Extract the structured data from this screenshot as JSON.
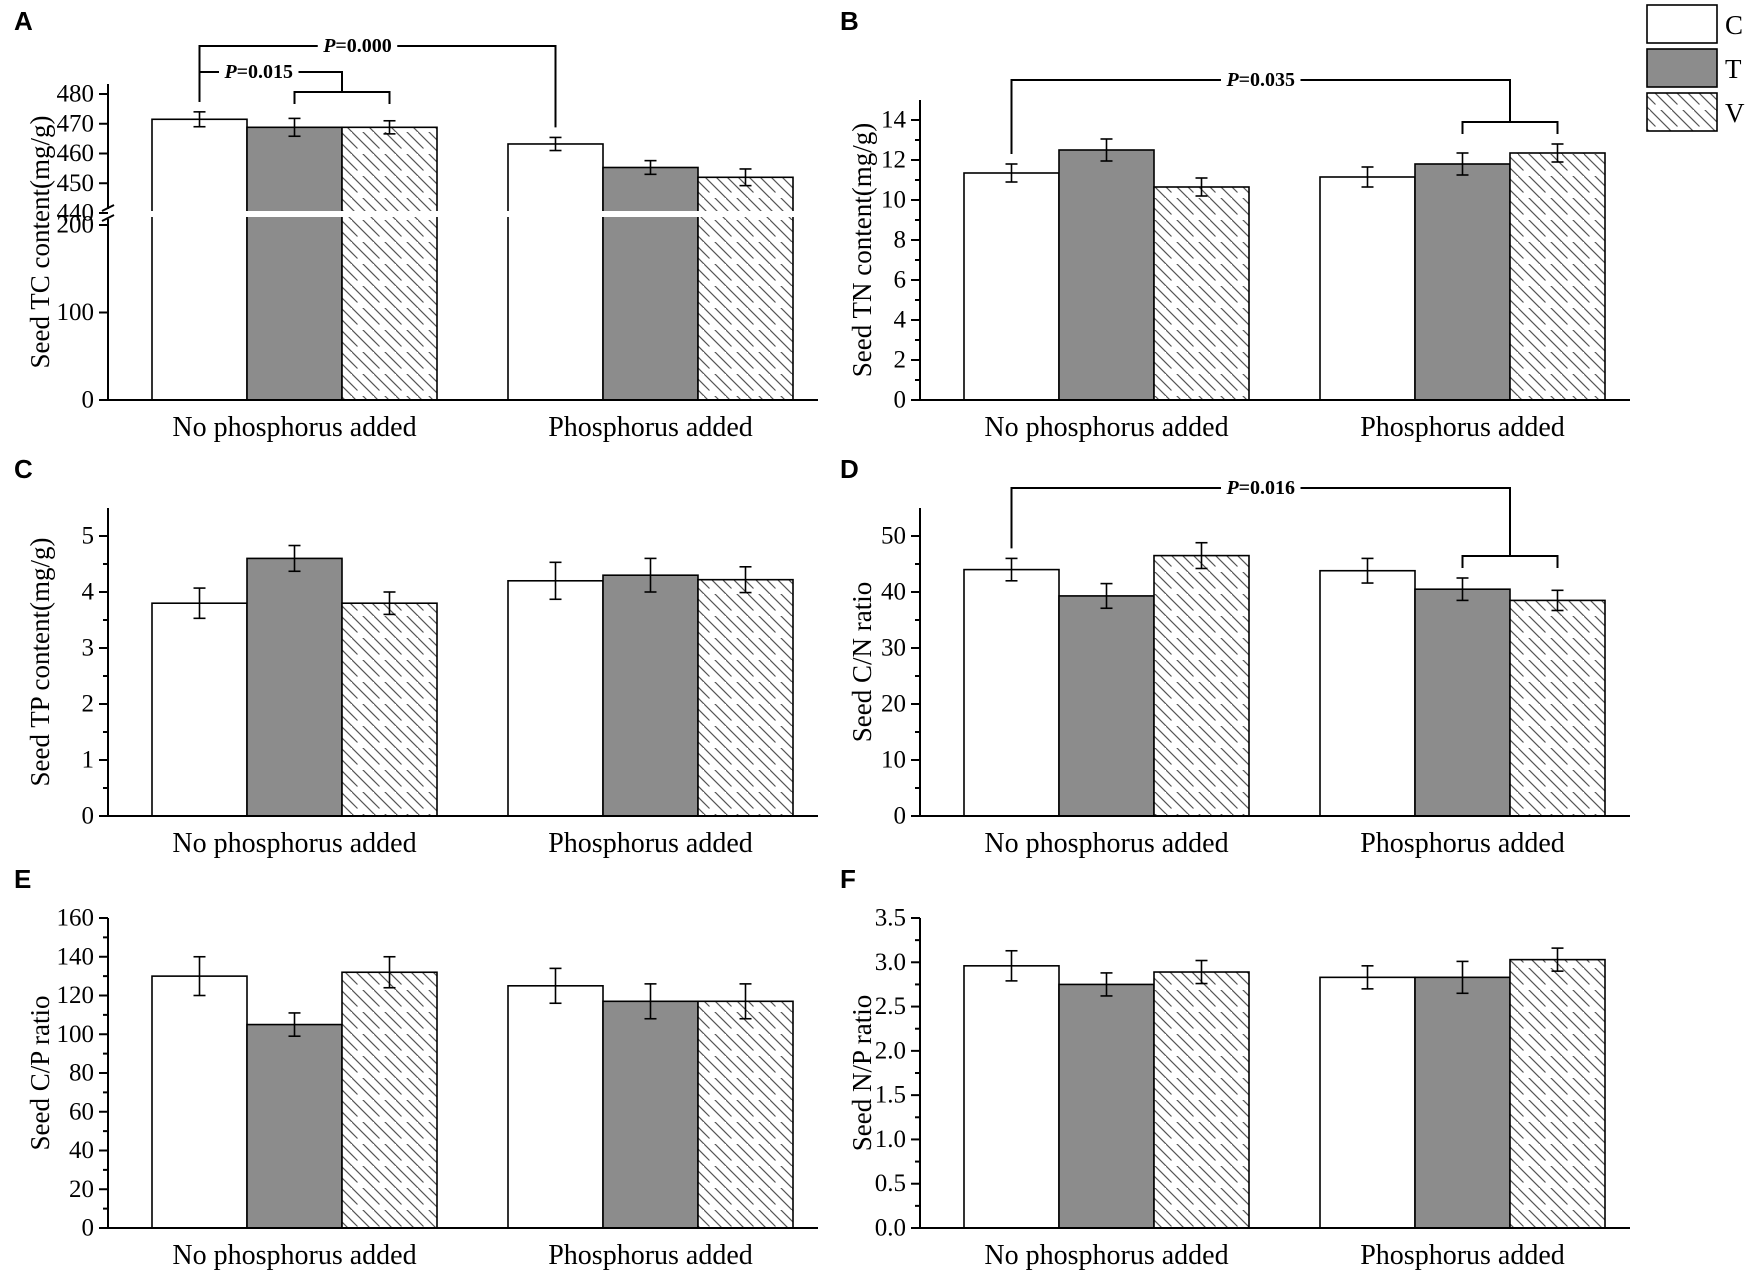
{
  "colors": {
    "C": "#ffffff",
    "T": "#8c8c8c",
    "V": "hatch",
    "axis": "#000000"
  },
  "legend": {
    "items": [
      {
        "key": "C",
        "label": "C"
      },
      {
        "key": "T",
        "label": "T"
      },
      {
        "key": "V",
        "label": "V"
      }
    ]
  },
  "chart_data": [
    {
      "panel": "A",
      "type": "bar",
      "ylabel": "Seed TC content(mg/g)",
      "categories": [
        "No phosphorus added",
        "Phosphorus added"
      ],
      "series": [
        {
          "name": "C",
          "values": [
            471.5,
            463.2
          ],
          "errors": [
            2.5,
            2.2
          ]
        },
        {
          "name": "T",
          "values": [
            468.8,
            455.3
          ],
          "errors": [
            3.0,
            2.3
          ]
        },
        {
          "name": "V",
          "values": [
            468.8,
            452.0
          ],
          "errors": [
            2.2,
            2.8
          ]
        }
      ],
      "ylim": [
        0,
        480
      ],
      "axis_break": [
        200,
        440
      ],
      "yticks_lower": [
        0,
        100,
        200
      ],
      "yticks_upper": [
        440,
        450,
        460,
        470,
        480
      ],
      "tick_labels": [
        "0",
        "100",
        "200",
        "440",
        "450",
        "460",
        "470",
        "480"
      ],
      "annotations": [
        {
          "text": "P=0.000",
          "from": [
            0,
            "C"
          ],
          "to": [
            1,
            "C"
          ]
        },
        {
          "text": "P=0.015",
          "from": [
            0,
            "C"
          ],
          "to_group": [
            0,
            "T",
            "V"
          ]
        }
      ]
    },
    {
      "panel": "B",
      "type": "bar",
      "ylabel": "Seed TN content(mg/g)",
      "categories": [
        "No phosphorus added",
        "Phosphorus added"
      ],
      "series": [
        {
          "name": "C",
          "values": [
            11.35,
            11.15
          ],
          "errors": [
            0.45,
            0.5
          ]
        },
        {
          "name": "T",
          "values": [
            12.5,
            11.8
          ],
          "errors": [
            0.55,
            0.55
          ]
        },
        {
          "name": "V",
          "values": [
            10.65,
            12.35
          ],
          "errors": [
            0.45,
            0.45
          ]
        }
      ],
      "ylim": [
        0,
        15
      ],
      "yticks": [
        0,
        2,
        4,
        6,
        8,
        10,
        12,
        14
      ],
      "tick_labels": [
        "0",
        "2",
        "4",
        "6",
        "8",
        "10",
        "12",
        "14"
      ],
      "annotations": [
        {
          "text": "P=0.035",
          "from": [
            0,
            "C"
          ],
          "to_group": [
            1,
            "T",
            "V"
          ]
        }
      ]
    },
    {
      "panel": "C",
      "type": "bar",
      "ylabel": "Seed TP content(mg/g)",
      "categories": [
        "No phosphorus added",
        "Phosphorus added"
      ],
      "series": [
        {
          "name": "C",
          "values": [
            3.8,
            4.2
          ],
          "errors": [
            0.27,
            0.33
          ]
        },
        {
          "name": "T",
          "values": [
            4.6,
            4.3
          ],
          "errors": [
            0.23,
            0.3
          ]
        },
        {
          "name": "V",
          "values": [
            3.8,
            4.22
          ],
          "errors": [
            0.2,
            0.23
          ]
        }
      ],
      "ylim": [
        0,
        5.5
      ],
      "yticks": [
        0,
        1,
        2,
        3,
        4,
        5
      ],
      "tick_labels": [
        "0",
        "1",
        "2",
        "3",
        "4",
        "5"
      ],
      "annotations": []
    },
    {
      "panel": "D",
      "type": "bar",
      "ylabel": "Seed C/N ratio",
      "categories": [
        "No phosphorus added",
        "Phosphorus added"
      ],
      "series": [
        {
          "name": "C",
          "values": [
            44.0,
            43.8
          ],
          "errors": [
            2.0,
            2.2
          ]
        },
        {
          "name": "T",
          "values": [
            39.3,
            40.5
          ],
          "errors": [
            2.2,
            2.0
          ]
        },
        {
          "name": "V",
          "values": [
            46.5,
            38.5
          ],
          "errors": [
            2.3,
            1.8
          ]
        }
      ],
      "ylim": [
        0,
        55
      ],
      "yticks": [
        0,
        10,
        20,
        30,
        40,
        50
      ],
      "tick_labels": [
        "0",
        "10",
        "20",
        "30",
        "40",
        "50"
      ],
      "annotations": [
        {
          "text": "P=0.016",
          "from": [
            0,
            "C"
          ],
          "to_group": [
            1,
            "T",
            "V"
          ]
        }
      ]
    },
    {
      "panel": "E",
      "type": "bar",
      "ylabel": "Seed C/P ratio",
      "categories": [
        "No phosphorus added",
        "Phosphorus added"
      ],
      "series": [
        {
          "name": "C",
          "values": [
            130,
            125
          ],
          "errors": [
            10,
            9
          ]
        },
        {
          "name": "T",
          "values": [
            105,
            117
          ],
          "errors": [
            6,
            9
          ]
        },
        {
          "name": "V",
          "values": [
            132,
            117
          ],
          "errors": [
            8,
            9
          ]
        }
      ],
      "ylim": [
        0,
        160
      ],
      "yticks": [
        0,
        20,
        40,
        60,
        80,
        100,
        120,
        140,
        160
      ],
      "tick_labels": [
        "0",
        "20",
        "40",
        "60",
        "80",
        "100",
        "120",
        "140",
        "160"
      ],
      "annotations": []
    },
    {
      "panel": "F",
      "type": "bar",
      "ylabel": "Seed N/P ratio",
      "categories": [
        "No phosphorus added",
        "Phosphorus added"
      ],
      "series": [
        {
          "name": "C",
          "values": [
            2.96,
            2.83
          ],
          "errors": [
            0.17,
            0.13
          ]
        },
        {
          "name": "T",
          "values": [
            2.75,
            2.83
          ],
          "errors": [
            0.13,
            0.18
          ]
        },
        {
          "name": "V",
          "values": [
            2.89,
            3.03
          ],
          "errors": [
            0.13,
            0.13
          ]
        }
      ],
      "ylim": [
        0,
        3.5
      ],
      "yticks": [
        0.0,
        0.5,
        1.0,
        1.5,
        2.0,
        2.5,
        3.0,
        3.5
      ],
      "tick_labels": [
        "0.0",
        "0.5",
        "1.0",
        "1.5",
        "2.0",
        "2.5",
        "3.0",
        "3.5"
      ],
      "annotations": []
    }
  ]
}
